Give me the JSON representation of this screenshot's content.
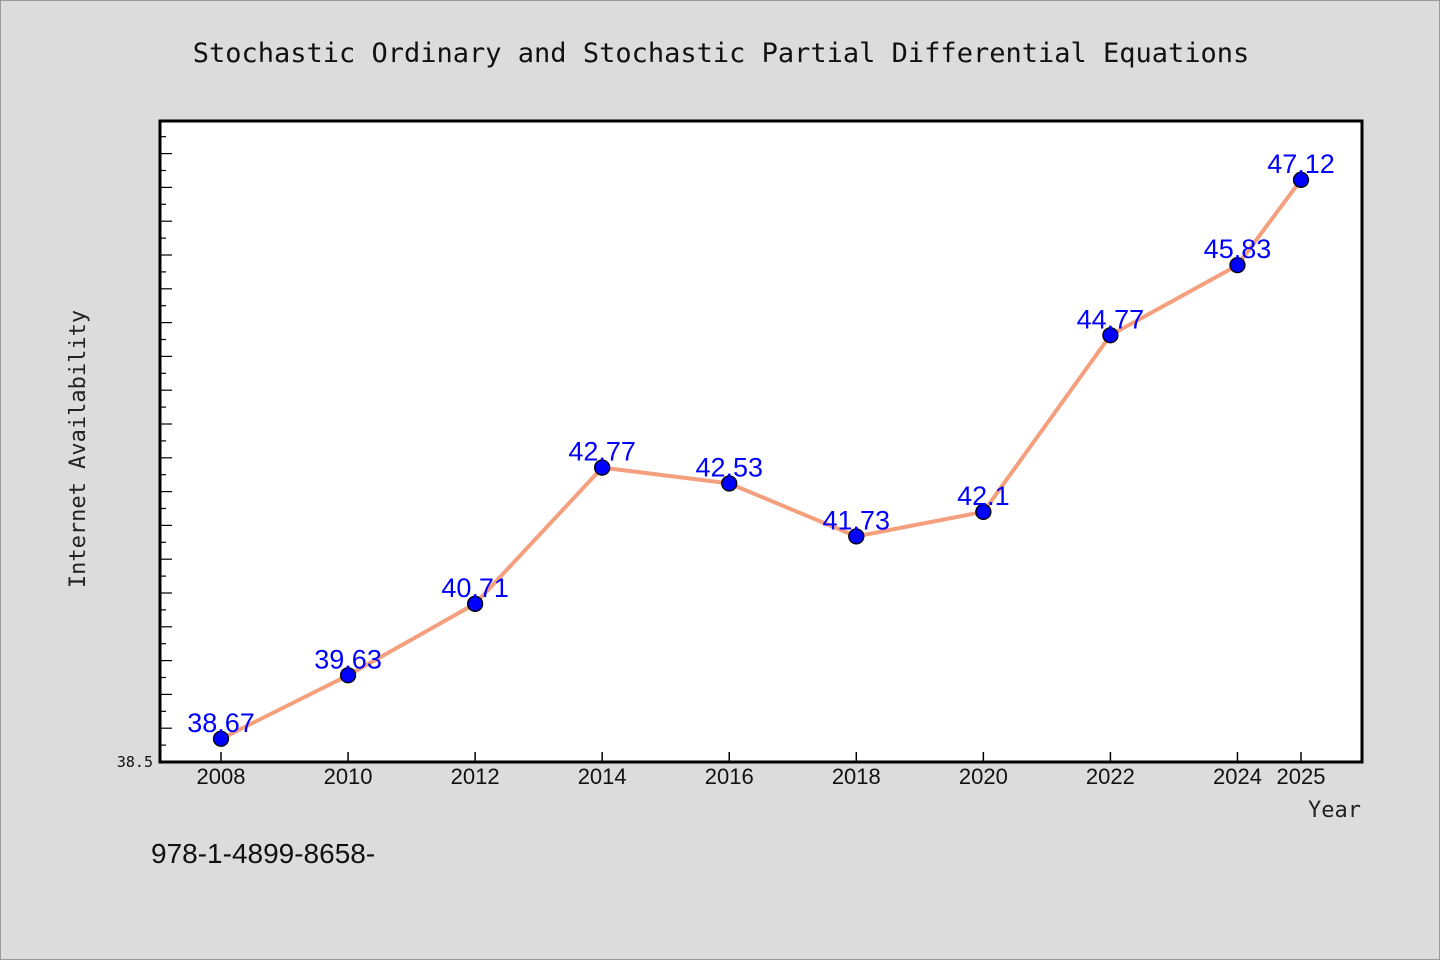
{
  "chart_data": {
    "type": "line",
    "title": "Stochastic Ordinary and Stochastic Partial Differential Equations",
    "xlabel": "Year",
    "ylabel": "Internet Availability",
    "categories": [
      "2008",
      "2010",
      "2012",
      "2014",
      "2016",
      "2018",
      "2020",
      "2022",
      "2024",
      "2025"
    ],
    "values": [
      38.67,
      39.63,
      40.71,
      42.77,
      42.53,
      41.73,
      42.1,
      44.77,
      45.83,
      47.12
    ],
    "data_labels": [
      "38.67",
      "39.63",
      "40.71",
      "42.77",
      "42.53",
      "41.73",
      "42.1",
      "44.77",
      "45.83",
      "47.12"
    ],
    "ylim": [
      38.5,
      48.0
    ],
    "y_min_tick_label": "38.5",
    "grid": false,
    "line_color": "#f4a07e",
    "marker_color": "#0000ff",
    "label_color": "#0000ff"
  },
  "footer": {
    "isbn": "978-1-4899-8658-"
  }
}
